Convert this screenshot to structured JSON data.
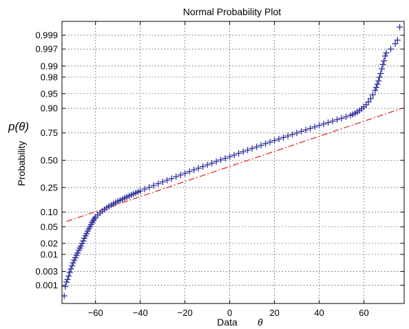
{
  "chart_data": {
    "type": "scatter",
    "title": "Normal Probability Plot",
    "xlabel": "Data",
    "xlabel_symbol": "θ",
    "ylabel": "Probability",
    "ylabel_annotation": "p(θ)",
    "xlim": [
      -75,
      78
    ],
    "x_ticks": [
      -60,
      -40,
      -20,
      0,
      20,
      40,
      60
    ],
    "x_tick_labels": [
      "−60",
      "−40",
      "−20",
      "0",
      "20",
      "40",
      "60"
    ],
    "y_scale": "normal-probability",
    "y_ticks": [
      0.001,
      0.003,
      0.01,
      0.02,
      0.05,
      0.1,
      0.25,
      0.5,
      0.75,
      0.9,
      0.95,
      0.98,
      0.99,
      0.997,
      0.999
    ],
    "y_tick_labels": [
      "0.001",
      "0.003",
      "0.01",
      "0.02",
      "0.05",
      "0.10",
      "0.25",
      "0.50",
      "0.75",
      "0.90",
      "0.95",
      "0.98",
      "0.99",
      "0.997",
      "0.999"
    ],
    "grid": true,
    "marker": "+",
    "marker_color": "#2b2b9a",
    "reference_line": {
      "style": "dash-dot",
      "color": "#e03030",
      "points": [
        [
          -73,
          0.065
        ],
        [
          77,
          0.9
        ]
      ]
    },
    "series": [
      {
        "points": [
          [
            -74,
            0.0004
          ],
          [
            -73.5,
            0.0009
          ],
          [
            -73,
            0.0013
          ],
          [
            -72.5,
            0.0016
          ],
          [
            -72,
            0.0021
          ],
          [
            -71.5,
            0.0028
          ],
          [
            -71,
            0.0036
          ],
          [
            -70.5,
            0.0045
          ],
          [
            -70,
            0.0056
          ],
          [
            -69.5,
            0.0068
          ],
          [
            -69,
            0.008
          ],
          [
            -68.5,
            0.0095
          ],
          [
            -68,
            0.011
          ],
          [
            -67.5,
            0.013
          ],
          [
            -67,
            0.015
          ],
          [
            -66.5,
            0.017
          ],
          [
            -66,
            0.02
          ],
          [
            -65.5,
            0.023
          ],
          [
            -65,
            0.027
          ],
          [
            -64.5,
            0.031
          ],
          [
            -64,
            0.035
          ],
          [
            -63.5,
            0.04
          ],
          [
            -63,
            0.045
          ],
          [
            -62.5,
            0.05
          ],
          [
            -62,
            0.056
          ],
          [
            -61.5,
            0.062
          ],
          [
            -61,
            0.068
          ],
          [
            -60.5,
            0.074
          ],
          [
            -60,
            0.08
          ],
          [
            -59,
            0.088
          ],
          [
            -58,
            0.096
          ],
          [
            -57,
            0.104
          ],
          [
            -56,
            0.112
          ],
          [
            -55,
            0.12
          ],
          [
            -54,
            0.127
          ],
          [
            -53,
            0.134
          ],
          [
            -52,
            0.141
          ],
          [
            -51,
            0.148
          ],
          [
            -50,
            0.155
          ],
          [
            -49,
            0.161
          ],
          [
            -48,
            0.168
          ],
          [
            -47,
            0.175
          ],
          [
            -46,
            0.182
          ],
          [
            -45,
            0.189
          ],
          [
            -44,
            0.196
          ],
          [
            -43,
            0.203
          ],
          [
            -42,
            0.21
          ],
          [
            -41,
            0.217
          ],
          [
            -40,
            0.224
          ],
          [
            -38,
            0.238
          ],
          [
            -36,
            0.252
          ],
          [
            -34,
            0.266
          ],
          [
            -32,
            0.281
          ],
          [
            -30,
            0.296
          ],
          [
            -28,
            0.311
          ],
          [
            -26,
            0.326
          ],
          [
            -24,
            0.342
          ],
          [
            -22,
            0.358
          ],
          [
            -20,
            0.374
          ],
          [
            -18,
            0.39
          ],
          [
            -16,
            0.406
          ],
          [
            -14,
            0.422
          ],
          [
            -12,
            0.438
          ],
          [
            -10,
            0.455
          ],
          [
            -8,
            0.471
          ],
          [
            -6,
            0.487
          ],
          [
            -4,
            0.503
          ],
          [
            -2,
            0.519
          ],
          [
            0,
            0.535
          ],
          [
            2,
            0.551
          ],
          [
            4,
            0.567
          ],
          [
            6,
            0.583
          ],
          [
            8,
            0.599
          ],
          [
            10,
            0.614
          ],
          [
            12,
            0.629
          ],
          [
            14,
            0.644
          ],
          [
            16,
            0.659
          ],
          [
            18,
            0.673
          ],
          [
            20,
            0.687
          ],
          [
            22,
            0.7
          ],
          [
            24,
            0.713
          ],
          [
            26,
            0.726
          ],
          [
            28,
            0.738
          ],
          [
            30,
            0.75
          ],
          [
            32,
            0.762
          ],
          [
            34,
            0.773
          ],
          [
            36,
            0.784
          ],
          [
            38,
            0.795
          ],
          [
            40,
            0.805
          ],
          [
            42,
            0.815
          ],
          [
            44,
            0.824
          ],
          [
            46,
            0.833
          ],
          [
            48,
            0.842
          ],
          [
            50,
            0.85
          ],
          [
            52,
            0.858
          ],
          [
            54,
            0.866
          ],
          [
            55,
            0.871
          ],
          [
            56,
            0.877
          ],
          [
            57,
            0.883
          ],
          [
            58,
            0.89
          ],
          [
            59,
            0.898
          ],
          [
            60,
            0.906
          ],
          [
            61,
            0.915
          ],
          [
            62,
            0.925
          ],
          [
            63,
            0.936
          ],
          [
            64,
            0.947
          ],
          [
            65,
            0.958
          ],
          [
            65.5,
            0.964
          ],
          [
            66,
            0.97
          ],
          [
            66.5,
            0.975
          ],
          [
            67,
            0.98
          ],
          [
            67.5,
            0.984
          ],
          [
            68,
            0.988
          ],
          [
            68.5,
            0.991
          ],
          [
            69,
            0.993
          ],
          [
            69.5,
            0.995
          ],
          [
            70,
            0.996
          ],
          [
            72,
            0.997
          ],
          [
            74,
            0.998
          ],
          [
            75,
            0.9985
          ],
          [
            76,
            0.9995
          ]
        ]
      }
    ]
  }
}
